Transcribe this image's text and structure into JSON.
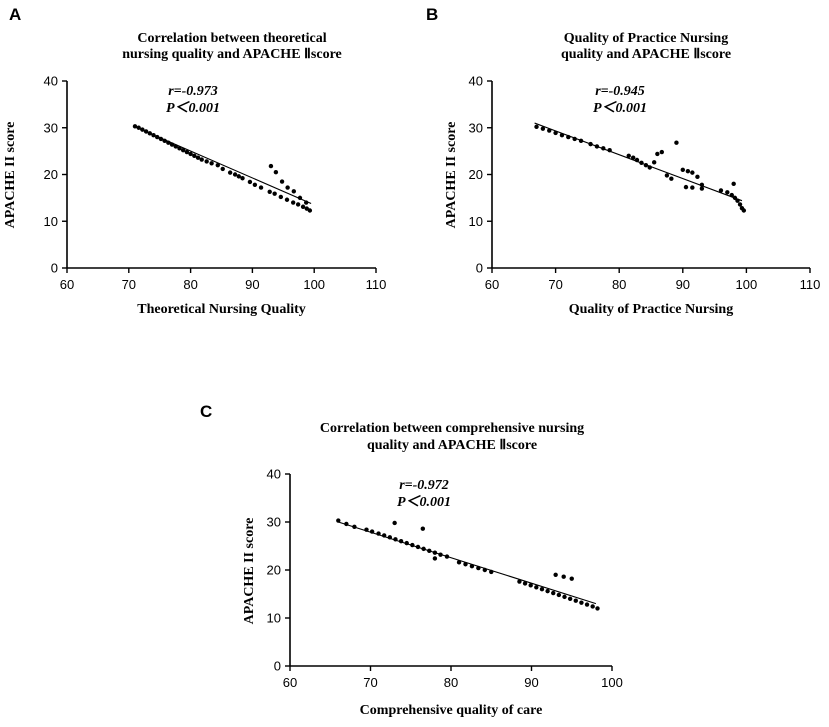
{
  "chart_data": [
    {
      "panel": "A",
      "type": "scatter",
      "title": [
        "Correlation between theoretical",
        "nursing quality and APACHE Ⅱscore"
      ],
      "xlabel": "Theoretical Nursing Quality",
      "ylabel": "APACHE II score",
      "xlim": [
        60,
        110
      ],
      "ylim": [
        0,
        40
      ],
      "xticks": [
        60,
        70,
        80,
        90,
        100,
        110
      ],
      "yticks": [
        0,
        10,
        20,
        30,
        40
      ],
      "annotations": [
        "r=-0.973",
        "P＜0.001"
      ],
      "fit_line": {
        "x": [
          71,
          99.5
        ],
        "y": [
          30.2,
          13.8
        ]
      },
      "x": [
        71,
        71.6,
        72.2,
        72.8,
        73.4,
        74,
        74.6,
        75.2,
        75.8,
        76.4,
        77,
        77.6,
        78.2,
        78.8,
        79.4,
        80,
        80.6,
        81.2,
        81.8,
        82.6,
        83.4,
        84.4,
        85.2,
        86.4,
        87.2,
        87.8,
        88.4,
        89.6,
        90.4,
        91.4,
        92.8,
        93.6,
        94.6,
        95.6,
        96.6,
        97.4,
        98.2,
        98.8,
        99.3,
        93,
        93.8,
        94.8,
        95.7,
        96.7,
        97.7,
        98.7
      ],
      "y": [
        30.3,
        30,
        29.6,
        29.2,
        28.8,
        28.4,
        28,
        27.6,
        27.2,
        26.8,
        26.4,
        26,
        25.6,
        25.2,
        24.8,
        24.4,
        24,
        23.6,
        23.2,
        22.8,
        22.4,
        22,
        21.2,
        20.4,
        20,
        19.6,
        19.2,
        18.4,
        17.8,
        17.2,
        16.3,
        15.9,
        15.2,
        14.6,
        14,
        13.6,
        13.1,
        12.7,
        12.3,
        21.8,
        20.5,
        18.5,
        17.2,
        16.4,
        15,
        14
      ]
    },
    {
      "panel": "B",
      "type": "scatter",
      "title": [
        "Quality of Practice Nursing",
        "quality and APACHE Ⅱscore"
      ],
      "xlabel": "Quality of Practice Nursing",
      "ylabel": "APACHE II score",
      "xlim": [
        60,
        110
      ],
      "ylim": [
        0,
        40
      ],
      "xticks": [
        60,
        70,
        80,
        90,
        100,
        110
      ],
      "yticks": [
        0,
        10,
        20,
        30,
        40
      ],
      "annotations": [
        "r=-0.945",
        "P＜0.001"
      ],
      "fit_line": {
        "x": [
          66.7,
          99.3
        ],
        "y": [
          31,
          14.4
        ]
      },
      "x": [
        67,
        68,
        69,
        70,
        71,
        72,
        73,
        74,
        75.5,
        76.5,
        77.5,
        78.5,
        81.5,
        82.2,
        82.8,
        83.5,
        84.2,
        84.8,
        85.5,
        86,
        86.7,
        87.5,
        88.2,
        89,
        90,
        90.8,
        91.5,
        92.3,
        93,
        90.5,
        91.5,
        93,
        96,
        97,
        97.7,
        98.2,
        98.6,
        99,
        99.3,
        99.6,
        98
      ],
      "y": [
        30.2,
        29.8,
        29.4,
        28.9,
        28.4,
        28,
        27.6,
        27.2,
        26.5,
        26,
        25.6,
        25.2,
        24,
        23.6,
        23.1,
        22.5,
        22,
        21.5,
        22.6,
        24.4,
        24.8,
        19.8,
        19.1,
        26.8,
        21,
        20.7,
        20.4,
        19.5,
        17.8,
        17.3,
        17.2,
        17,
        16.6,
        16.2,
        15.6,
        15,
        14.4,
        13.6,
        12.8,
        12.3,
        18
      ]
    },
    {
      "panel": "C",
      "type": "scatter",
      "title": [
        "Correlation between comprehensive nursing",
        "quality and APACHE Ⅱscore"
      ],
      "xlabel": "Comprehensive quality of care",
      "ylabel": "APACHE II score",
      "xlim": [
        60,
        100
      ],
      "ylim": [
        0,
        40
      ],
      "xticks": [
        60,
        70,
        80,
        90,
        100
      ],
      "yticks": [
        0,
        10,
        20,
        30,
        40
      ],
      "annotations": [
        "r=-0.972",
        "P＜0.001"
      ],
      "fit_line": {
        "x": [
          66,
          98
        ],
        "y": [
          30,
          13
        ]
      },
      "x": [
        66,
        67,
        68,
        69.5,
        70.2,
        71,
        71.7,
        72.4,
        73.1,
        73.8,
        74.5,
        75.2,
        75.9,
        76.6,
        77.3,
        78,
        78.7,
        79.5,
        81,
        81.8,
        82.6,
        83.4,
        84.2,
        85,
        88.5,
        89.2,
        89.9,
        90.6,
        91.3,
        92,
        92.7,
        93.4,
        94.1,
        94.8,
        95.5,
        96.2,
        96.9,
        97.6,
        98.2,
        73,
        76.5,
        93,
        94,
        95,
        78
      ],
      "y": [
        30.3,
        29.6,
        29,
        28.4,
        28,
        27.6,
        27.2,
        26.8,
        26.4,
        26,
        25.6,
        25.2,
        24.8,
        24.4,
        24,
        23.6,
        23.2,
        22.8,
        21.6,
        21.2,
        20.8,
        20.4,
        20,
        19.6,
        17.6,
        17.2,
        16.8,
        16.4,
        16,
        15.6,
        15.2,
        14.8,
        14.4,
        14,
        13.6,
        13.2,
        12.8,
        12.4,
        12,
        29.8,
        28.6,
        19,
        18.6,
        18.2,
        22.4
      ]
    }
  ]
}
